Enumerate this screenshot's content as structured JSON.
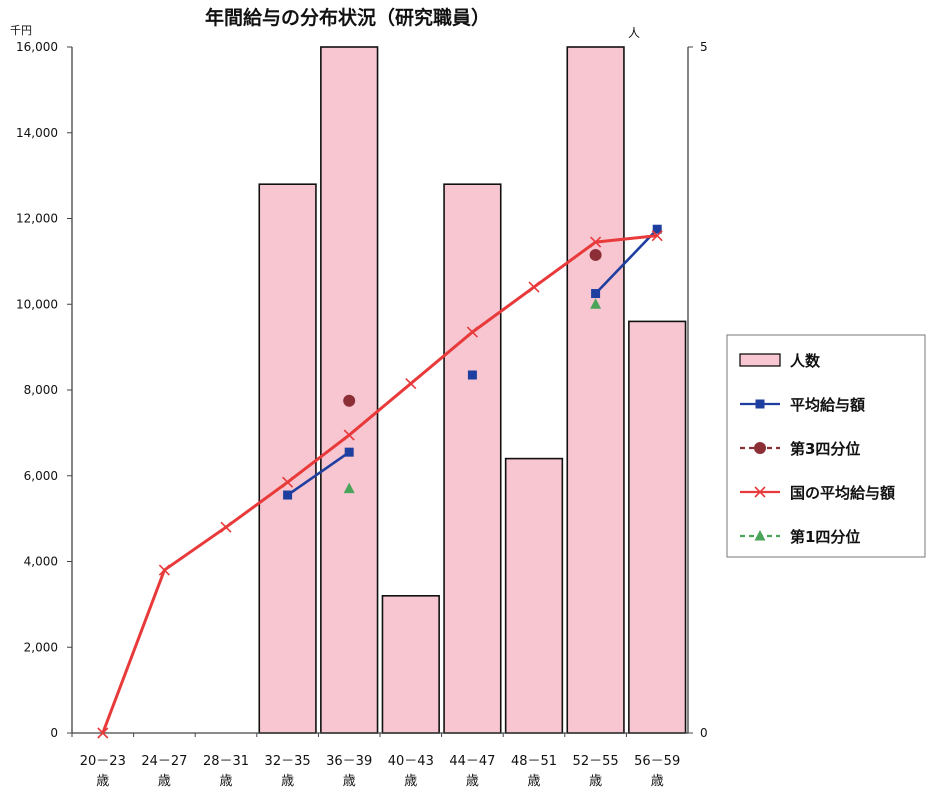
{
  "chart_data": {
    "type": "bar+line",
    "title": "年間給与の分布状況（研究職員）",
    "y_left_unit": "千円",
    "y_right_unit": "人",
    "y_left_range": [
      0,
      16000
    ],
    "y_left_ticks": [
      "0",
      "2,000",
      "4,000",
      "6,000",
      "8,000",
      "10,000",
      "12,000",
      "14,000",
      "16,000"
    ],
    "y_right_range": [
      0,
      5
    ],
    "y_right_ticks": [
      "0",
      "5"
    ],
    "categories": [
      {
        "range": "20－23",
        "suffix": "歳"
      },
      {
        "range": "24－27",
        "suffix": "歳"
      },
      {
        "range": "28－31",
        "suffix": "歳"
      },
      {
        "range": "32－35",
        "suffix": "歳"
      },
      {
        "range": "36－39",
        "suffix": "歳"
      },
      {
        "range": "40－43",
        "suffix": "歳"
      },
      {
        "range": "44－47",
        "suffix": "歳"
      },
      {
        "range": "48－51",
        "suffix": "歳"
      },
      {
        "range": "52－55",
        "suffix": "歳"
      },
      {
        "range": "56－59",
        "suffix": "歳"
      }
    ],
    "series": [
      {
        "name": "人数",
        "kind": "bar",
        "axis": "right",
        "color": "#f7c6d1",
        "values": [
          null,
          null,
          null,
          4,
          5,
          1,
          4,
          2,
          5,
          3
        ]
      },
      {
        "name": "平均給与額",
        "kind": "line-square",
        "axis": "left",
        "color": "#1f3fa0",
        "values": [
          null,
          null,
          null,
          5550,
          6550,
          null,
          8350,
          null,
          10250,
          11750
        ]
      },
      {
        "name": "第3四分位",
        "kind": "marker-circle",
        "axis": "left",
        "color": "#8b2e35",
        "values": [
          null,
          null,
          null,
          null,
          7750,
          null,
          null,
          null,
          11150,
          null
        ]
      },
      {
        "name": "国の平均給与額",
        "kind": "line-x",
        "axis": "left",
        "color": "#e83a3a",
        "values": [
          0,
          3800,
          4800,
          5850,
          6950,
          8150,
          9350,
          10400,
          11450,
          11600
        ]
      },
      {
        "name": "第1四分位",
        "kind": "marker-triangle",
        "axis": "left",
        "color": "#4aa55b",
        "values": [
          null,
          null,
          null,
          null,
          5700,
          null,
          null,
          null,
          10000,
          null
        ]
      }
    ],
    "legend_position": "right"
  }
}
